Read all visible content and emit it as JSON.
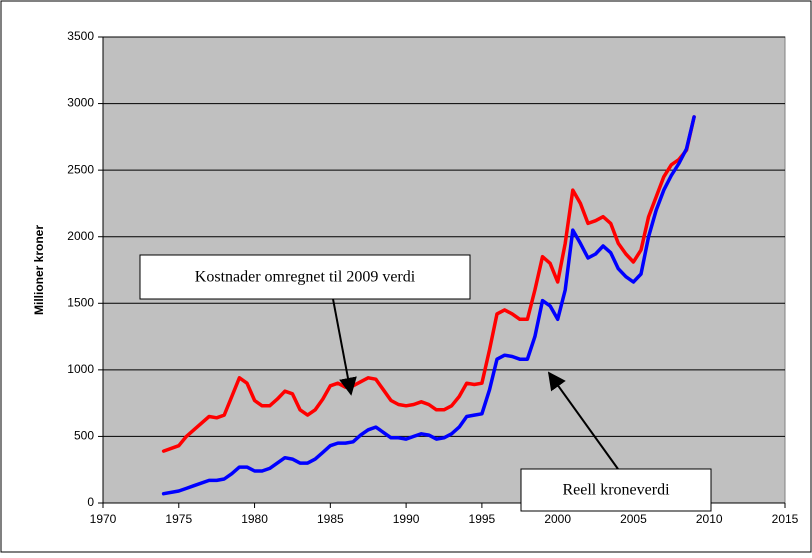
{
  "chart_data": {
    "type": "line",
    "ylabel": "Millioner kroner",
    "x": [
      1974,
      1975,
      1975.5,
      1976,
      1977,
      1977.5,
      1978,
      1978.5,
      1979,
      1979.5,
      1980,
      1980.5,
      1981,
      1981.5,
      1982,
      1982.5,
      1983,
      1983.5,
      1984,
      1984.5,
      1985,
      1985.5,
      1986,
      1986.5,
      1987,
      1987.5,
      1988,
      1988.5,
      1989,
      1989.5,
      1990,
      1990.5,
      1991,
      1991.5,
      1992,
      1992.5,
      1993,
      1993.5,
      1994,
      1994.5,
      1995,
      1995.5,
      1996,
      1996.5,
      1997,
      1997.5,
      1998,
      1998.5,
      1999,
      1999.5,
      2000,
      2000.5,
      2001,
      2001.5,
      2002,
      2002.5,
      2003,
      2003.5,
      2004,
      2004.5,
      2005,
      2005.5,
      2006,
      2006.5,
      2007,
      2007.5,
      2008,
      2008.5,
      2009
    ],
    "series": [
      {
        "color": "#ff0000",
        "values": [
          390,
          430,
          500,
          550,
          650,
          640,
          660,
          800,
          940,
          900,
          770,
          730,
          730,
          780,
          840,
          820,
          700,
          660,
          700,
          780,
          880,
          900,
          870,
          880,
          910,
          940,
          930,
          850,
          770,
          740,
          730,
          740,
          760,
          740,
          700,
          700,
          730,
          800,
          900,
          890,
          900,
          1150,
          1420,
          1450,
          1420,
          1380,
          1380,
          1600,
          1850,
          1800,
          1660,
          1950,
          2350,
          2250,
          2100,
          2120,
          2150,
          2100,
          1950,
          1870,
          1810,
          1900,
          2150,
          2300,
          2450,
          2540,
          2580,
          2650,
          2900
        ]
      },
      {
        "color": "#0000ff",
        "values": [
          70,
          90,
          110,
          130,
          170,
          170,
          180,
          220,
          270,
          270,
          240,
          240,
          260,
          300,
          340,
          330,
          300,
          300,
          330,
          380,
          430,
          450,
          450,
          460,
          510,
          550,
          570,
          530,
          490,
          490,
          480,
          500,
          520,
          510,
          480,
          490,
          520,
          570,
          650,
          660,
          670,
          850,
          1080,
          1110,
          1100,
          1080,
          1080,
          1250,
          1520,
          1480,
          1380,
          1600,
          2050,
          1950,
          1840,
          1870,
          1930,
          1880,
          1760,
          1700,
          1660,
          1720,
          2000,
          2200,
          2350,
          2460,
          2550,
          2660,
          2900
        ]
      }
    ],
    "xlim": [
      1970,
      2015
    ],
    "xticks": [
      1970,
      1975,
      1980,
      1985,
      1990,
      1995,
      2000,
      2005,
      2010,
      2015
    ],
    "ylim": [
      0,
      3500
    ],
    "yticks": [
      0,
      500,
      1000,
      1500,
      2000,
      2500,
      3000,
      3500
    ],
    "grid": true,
    "annotations": [
      "Kostnader omregnet til 2009 verdi",
      "Reell kroneverdi"
    ]
  }
}
